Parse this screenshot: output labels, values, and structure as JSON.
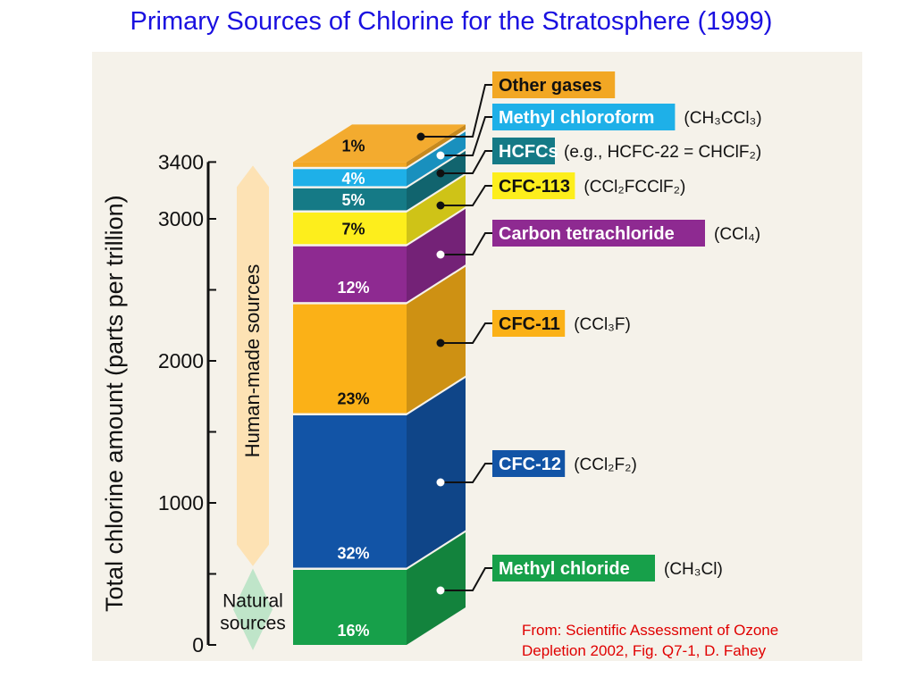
{
  "title": "Primary Sources of Chlorine for the Stratosphere (1999)",
  "source_note": {
    "line1": "From: Scientific Assessment of Ozone",
    "line2": "Depletion 2002, Fig. Q7-1, D. Fahey"
  },
  "colors": {
    "title": "#1a10e0",
    "source_note": "#e00000",
    "panel": "#f5f2ea"
  },
  "chart_data": {
    "type": "bar",
    "stacked": true,
    "ylabel": "Total chlorine amount (parts per trillion)",
    "ylim": [
      0,
      3400
    ],
    "yticks": [
      0,
      1000,
      2000,
      3000,
      3400
    ],
    "ytick_labels": [
      "0",
      "1000",
      "2000",
      "3000",
      "3400"
    ],
    "bracket_human": "Human-made sources",
    "bracket_natural": [
      "Natural",
      "sources"
    ],
    "total": 3400,
    "series": [
      {
        "name": "Methyl chloride",
        "formula": "(CH₃Cl)",
        "percent_label": "16%",
        "value": 0.16,
        "color": "#17a04a",
        "label_bg": "#17a04a",
        "label_fg": "#ffffff"
      },
      {
        "name": "CFC-12",
        "formula": "(CCl₂F₂)",
        "percent_label": "32%",
        "value": 0.32,
        "color": "#1254a6",
        "label_bg": "#1254a6",
        "label_fg": "#ffffff"
      },
      {
        "name": "CFC-11",
        "formula": "(CCl₃F)",
        "percent_label": "23%",
        "value": 0.23,
        "color": "#fbb117",
        "label_bg": "#fbb117",
        "label_fg": "#111111"
      },
      {
        "name": "Carbon tetrachloride",
        "formula": "(CCl₄)",
        "percent_label": "12%",
        "value": 0.12,
        "color": "#8e2a91",
        "label_bg": "#8e2a91",
        "label_fg": "#ffffff"
      },
      {
        "name": "CFC-113",
        "formula": "(CCl₂FCClF₂)",
        "percent_label": "7%",
        "value": 0.07,
        "color": "#fdee1c",
        "label_bg": "#fdee1c",
        "label_fg": "#111111"
      },
      {
        "name": "HCFCs",
        "formula": "(e.g., HCFC-22 = CHClF₂)",
        "percent_label": "5%",
        "value": 0.05,
        "color": "#157a86",
        "label_bg": "#157a86",
        "label_fg": "#ffffff"
      },
      {
        "name": "Methyl chloroform",
        "formula": "(CH₃CCl₃)",
        "percent_label": "4%",
        "value": 0.04,
        "color": "#1eb0e8",
        "label_bg": "#1eb0e8",
        "label_fg": "#ffffff"
      },
      {
        "name": "Other gases",
        "formula": "",
        "percent_label": "1%",
        "value": 0.01,
        "color": "#f2a724",
        "label_bg": "#f2a724",
        "label_fg": "#111111"
      }
    ]
  }
}
